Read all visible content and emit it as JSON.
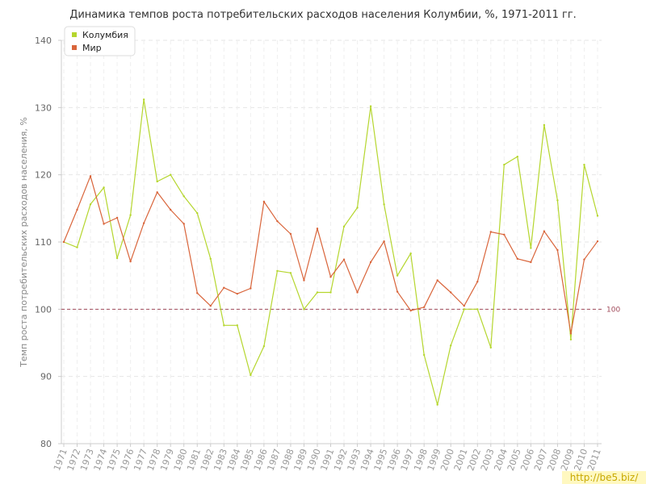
{
  "chart_data": {
    "type": "line",
    "title": "Динамика темпов роста потребительских расходов населения Колумбии, %, 1971-2011 гг.",
    "ylabel": "Темп роста потребительских расходов населения, %",
    "xlabel": "",
    "ylim": [
      80,
      140
    ],
    "yticks": [
      80,
      90,
      100,
      110,
      120,
      130,
      140
    ],
    "grid": true,
    "legend_position": "top-left",
    "reference_line": {
      "value": 100,
      "label": "100",
      "color": "#a04a5a"
    },
    "x": [
      "1971",
      "1972",
      "1973",
      "1974",
      "1975",
      "1976",
      "1977",
      "1978",
      "1979",
      "1980",
      "1981",
      "1982",
      "1983",
      "1984",
      "1985",
      "1986",
      "1987",
      "1988",
      "1989",
      "1990",
      "1991",
      "1992",
      "1993",
      "1994",
      "1995",
      "1996",
      "1997",
      "1998",
      "1999",
      "2000",
      "2001",
      "2002",
      "2003",
      "2004",
      "2005",
      "2006",
      "2007",
      "2008",
      "2009",
      "2010",
      "2011"
    ],
    "series": [
      {
        "name": "Колумбия",
        "color": "#b5d62e",
        "values": [
          110.0,
          109.2,
          115.6,
          118.1,
          107.6,
          114.0,
          131.2,
          119.0,
          120.0,
          116.8,
          114.3,
          107.5,
          97.6,
          97.6,
          90.2,
          94.5,
          105.7,
          105.4,
          100.0,
          102.5,
          102.5,
          112.3,
          115.1,
          130.2,
          115.6,
          105.0,
          108.3,
          93.2,
          85.8,
          94.6,
          100.0,
          100.0,
          94.3,
          121.5,
          122.7,
          109.1,
          127.4,
          116.2,
          95.5,
          121.5,
          113.9
        ]
      },
      {
        "name": "Мир",
        "color": "#d9653b",
        "values": [
          110.0,
          114.8,
          119.8,
          112.7,
          113.6,
          107.1,
          112.8,
          117.4,
          114.8,
          112.7,
          102.4,
          100.5,
          103.2,
          102.3,
          103.1,
          116.0,
          113.1,
          111.2,
          104.3,
          112.0,
          104.8,
          107.4,
          102.5,
          107.0,
          110.1,
          102.6,
          99.8,
          100.3,
          104.3,
          102.5,
          100.5,
          104.1,
          111.5,
          111.1,
          107.5,
          107.0,
          111.6,
          108.8,
          96.4,
          107.4,
          110.1
        ]
      }
    ]
  },
  "watermark": "http://be5.biz/"
}
